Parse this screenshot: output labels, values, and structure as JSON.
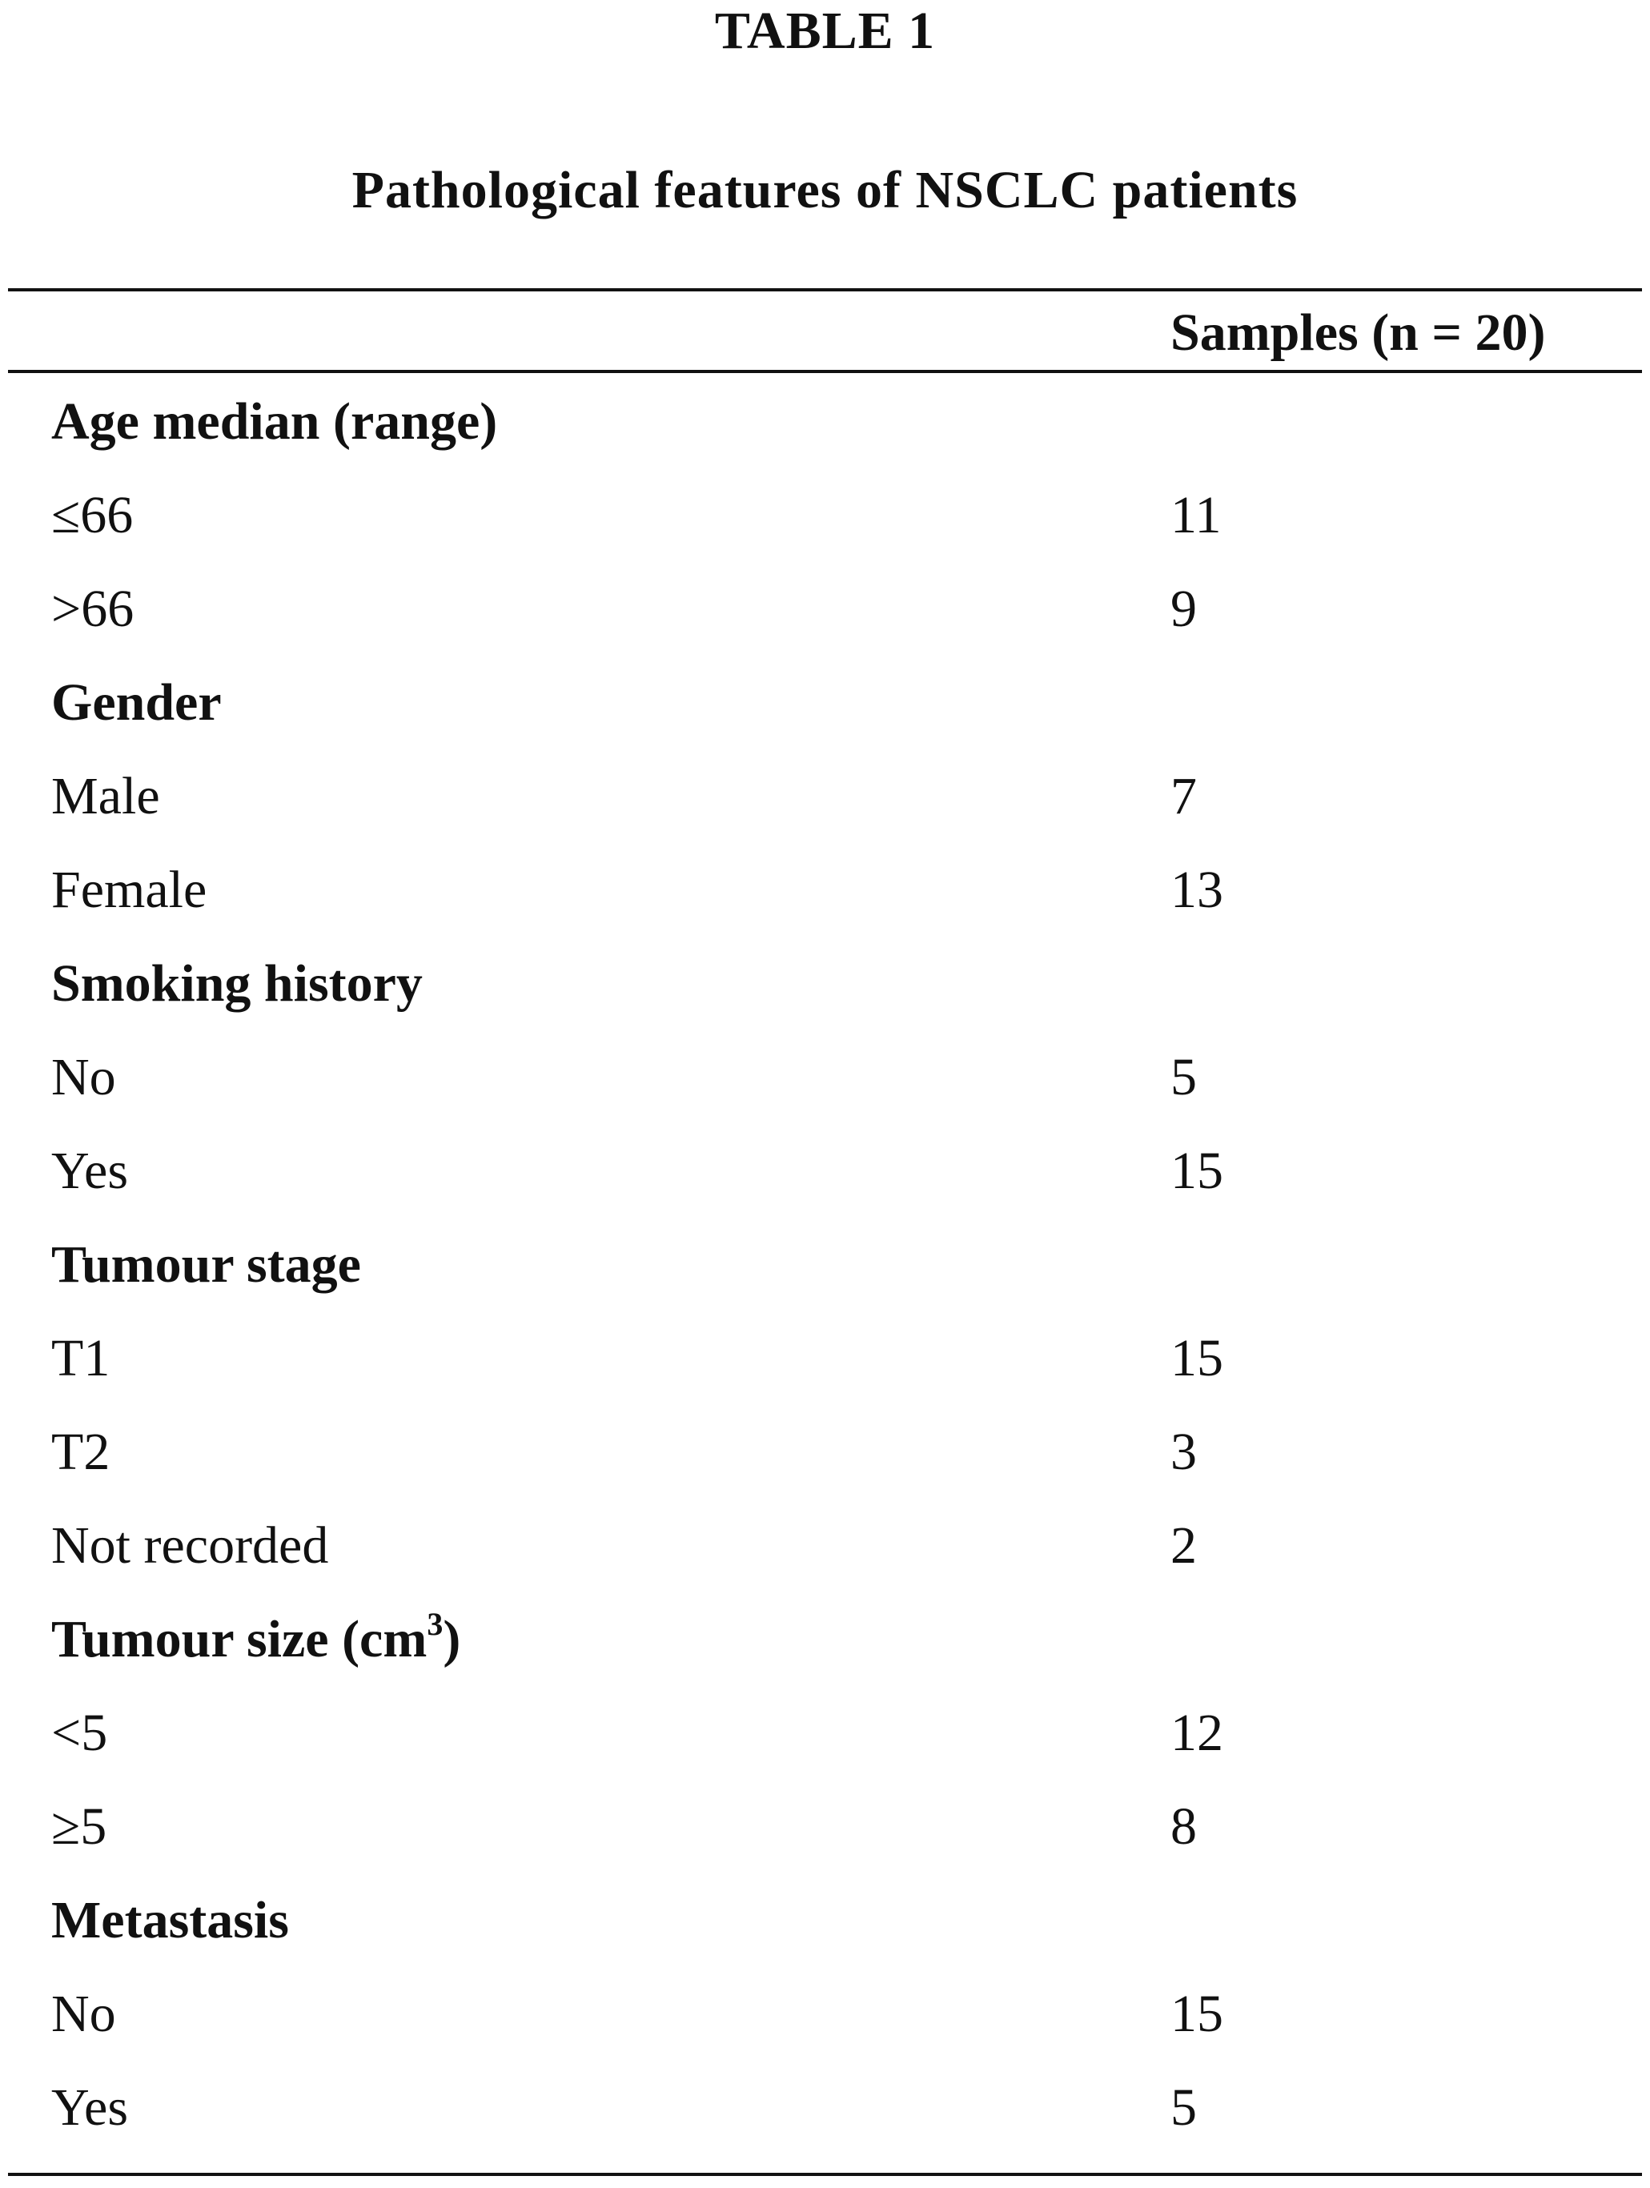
{
  "table": {
    "label": "TABLE 1",
    "title": "Pathological features of NSCLC patients",
    "column_header": "Samples (n = 20)",
    "rows": [
      {
        "label": "Age median (range)",
        "value": "",
        "group": true
      },
      {
        "label": "≤66",
        "value": "11",
        "group": false
      },
      {
        "label": ">66",
        "value": "9",
        "group": false
      },
      {
        "label": "Gender",
        "value": "",
        "group": true
      },
      {
        "label": "Male",
        "value": "7",
        "group": false
      },
      {
        "label": "Female",
        "value": "13",
        "group": false
      },
      {
        "label": "Smoking history",
        "value": "",
        "group": true
      },
      {
        "label": "No",
        "value": "5",
        "group": false
      },
      {
        "label": "Yes",
        "value": "15",
        "group": false
      },
      {
        "label": "Tumour stage",
        "value": "",
        "group": true
      },
      {
        "label": "T1",
        "value": "15",
        "group": false
      },
      {
        "label": "T2",
        "value": "3",
        "group": false
      },
      {
        "label": "Not recorded",
        "value": "2",
        "group": false
      },
      {
        "label": "Tumour size (cm",
        "label_sup": "3",
        "label_tail": ")",
        "value": "",
        "group": true
      },
      {
        "label": "<5",
        "value": "12",
        "group": false
      },
      {
        "label": "≥5",
        "value": "8",
        "group": false
      },
      {
        "label": "Metastasis",
        "value": "",
        "group": true
      },
      {
        "label": "No",
        "value": "15",
        "group": false
      },
      {
        "label": "Yes",
        "value": "5",
        "group": false
      }
    ]
  }
}
